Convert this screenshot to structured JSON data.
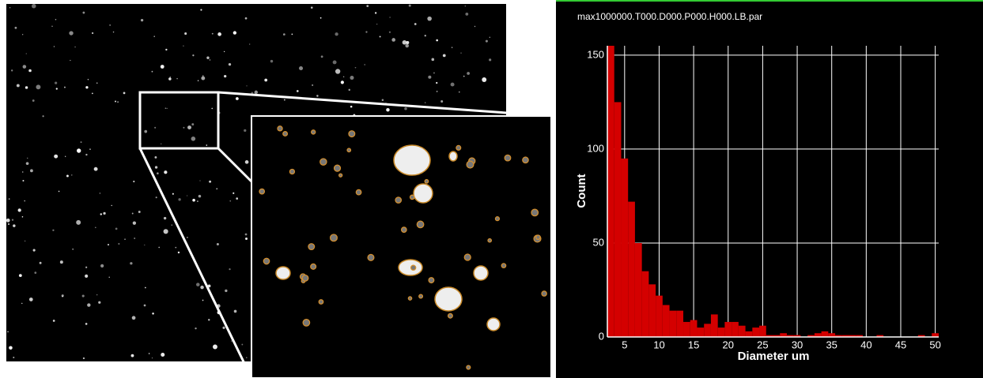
{
  "chart_data": {
    "type": "histogram",
    "title": "max1000000.T000.D000.P000.H000.LB.par",
    "x_label": "Diameter um",
    "y_label": "Count",
    "bins": [
      2.5,
      3.5,
      4.5,
      5.5,
      6.5,
      7.5,
      8.5,
      9.5,
      10.5,
      11.5,
      12.5,
      13.5,
      14.5,
      15.5,
      16.5,
      17.5,
      18.5,
      19.5,
      20.5,
      21.5,
      22.5,
      23.5,
      24.5,
      25.5,
      26.5,
      27.5,
      28.5,
      29.5,
      30.5,
      31.5,
      32.5,
      33.5,
      34.5,
      35.5,
      36.5,
      37.5,
      38.5,
      39.5,
      40.5,
      41.5,
      42.5,
      43.5,
      44.5,
      45.5,
      46.5,
      47.5,
      48.5,
      49.5,
      50.5
    ],
    "values": [
      160,
      125,
      95,
      72,
      50,
      35,
      28,
      22,
      17,
      14,
      14,
      8,
      9,
      5,
      7,
      12,
      5,
      8,
      8,
      6,
      3,
      5,
      6,
      1,
      1,
      2,
      1,
      1,
      0,
      1,
      2,
      3,
      2,
      1,
      1,
      1,
      1,
      0,
      0,
      1,
      0,
      0,
      0,
      0,
      0,
      1,
      0,
      2
    ],
    "color": "#d40000",
    "xlim": [
      2.5,
      50.5
    ],
    "xticks": [
      5,
      10,
      15,
      20,
      25,
      30,
      35,
      40,
      45,
      50
    ],
    "ylim": [
      0,
      155
    ],
    "yticks": [
      0,
      50,
      100,
      150
    ],
    "grid": true
  }
}
